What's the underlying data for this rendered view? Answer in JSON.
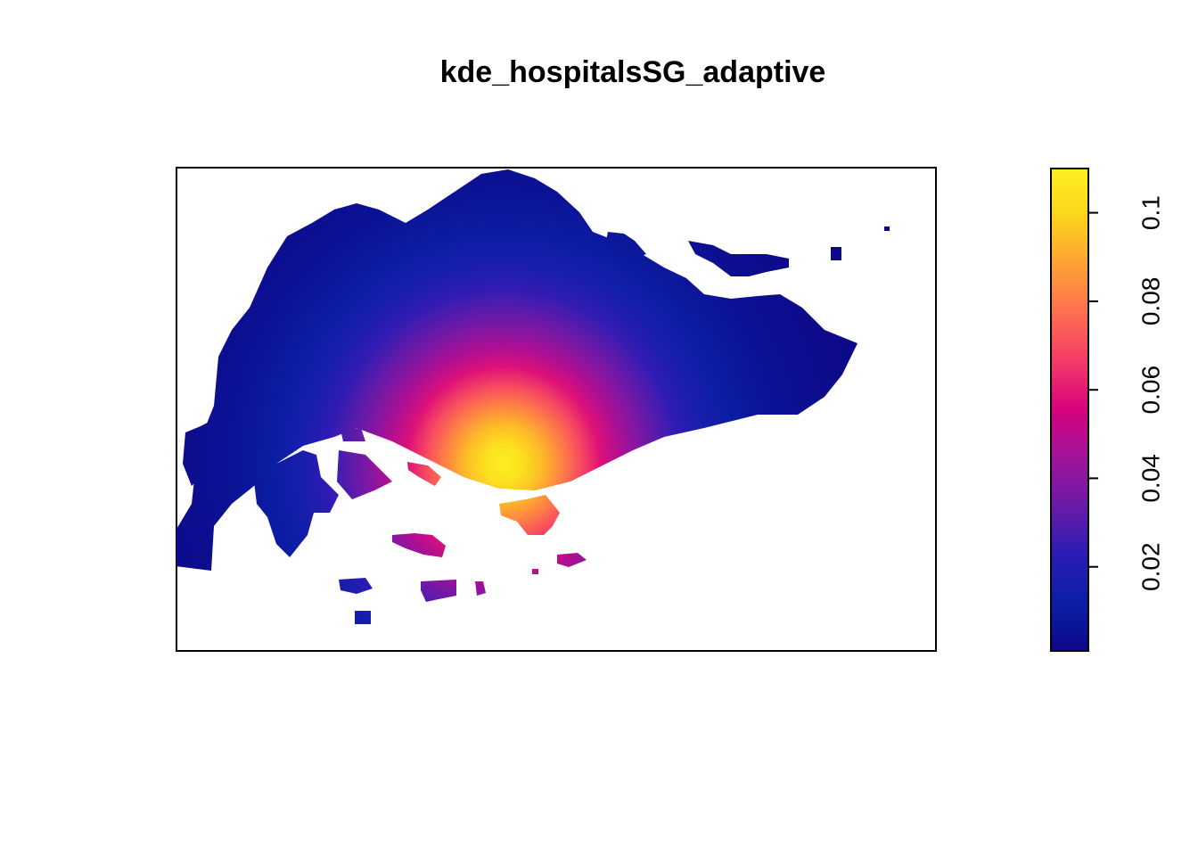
{
  "chart_data": {
    "type": "heatmap",
    "title": "kde_hospitalsSG_adaptive",
    "xlabel": "",
    "ylabel": "",
    "axes_shown": false,
    "map_subject": "Singapore",
    "value_range": [
      0.001,
      0.11
    ],
    "peak_value": 0.11,
    "colorbar": {
      "position": "right",
      "orientation": "vertical",
      "ticks": [
        0.02,
        0.04,
        0.06,
        0.08,
        0.1
      ],
      "tick_labels": [
        "0.02",
        "0.04",
        "0.06",
        "0.08",
        "0.1"
      ],
      "palette": [
        "#0d0887",
        "#0b1fa6",
        "#2a1cb4",
        "#6a1aa8",
        "#a0149a",
        "#d6027e",
        "#f43b68",
        "#fe6e50",
        "#fda134",
        "#fcd31d",
        "#fdf020"
      ]
    }
  }
}
